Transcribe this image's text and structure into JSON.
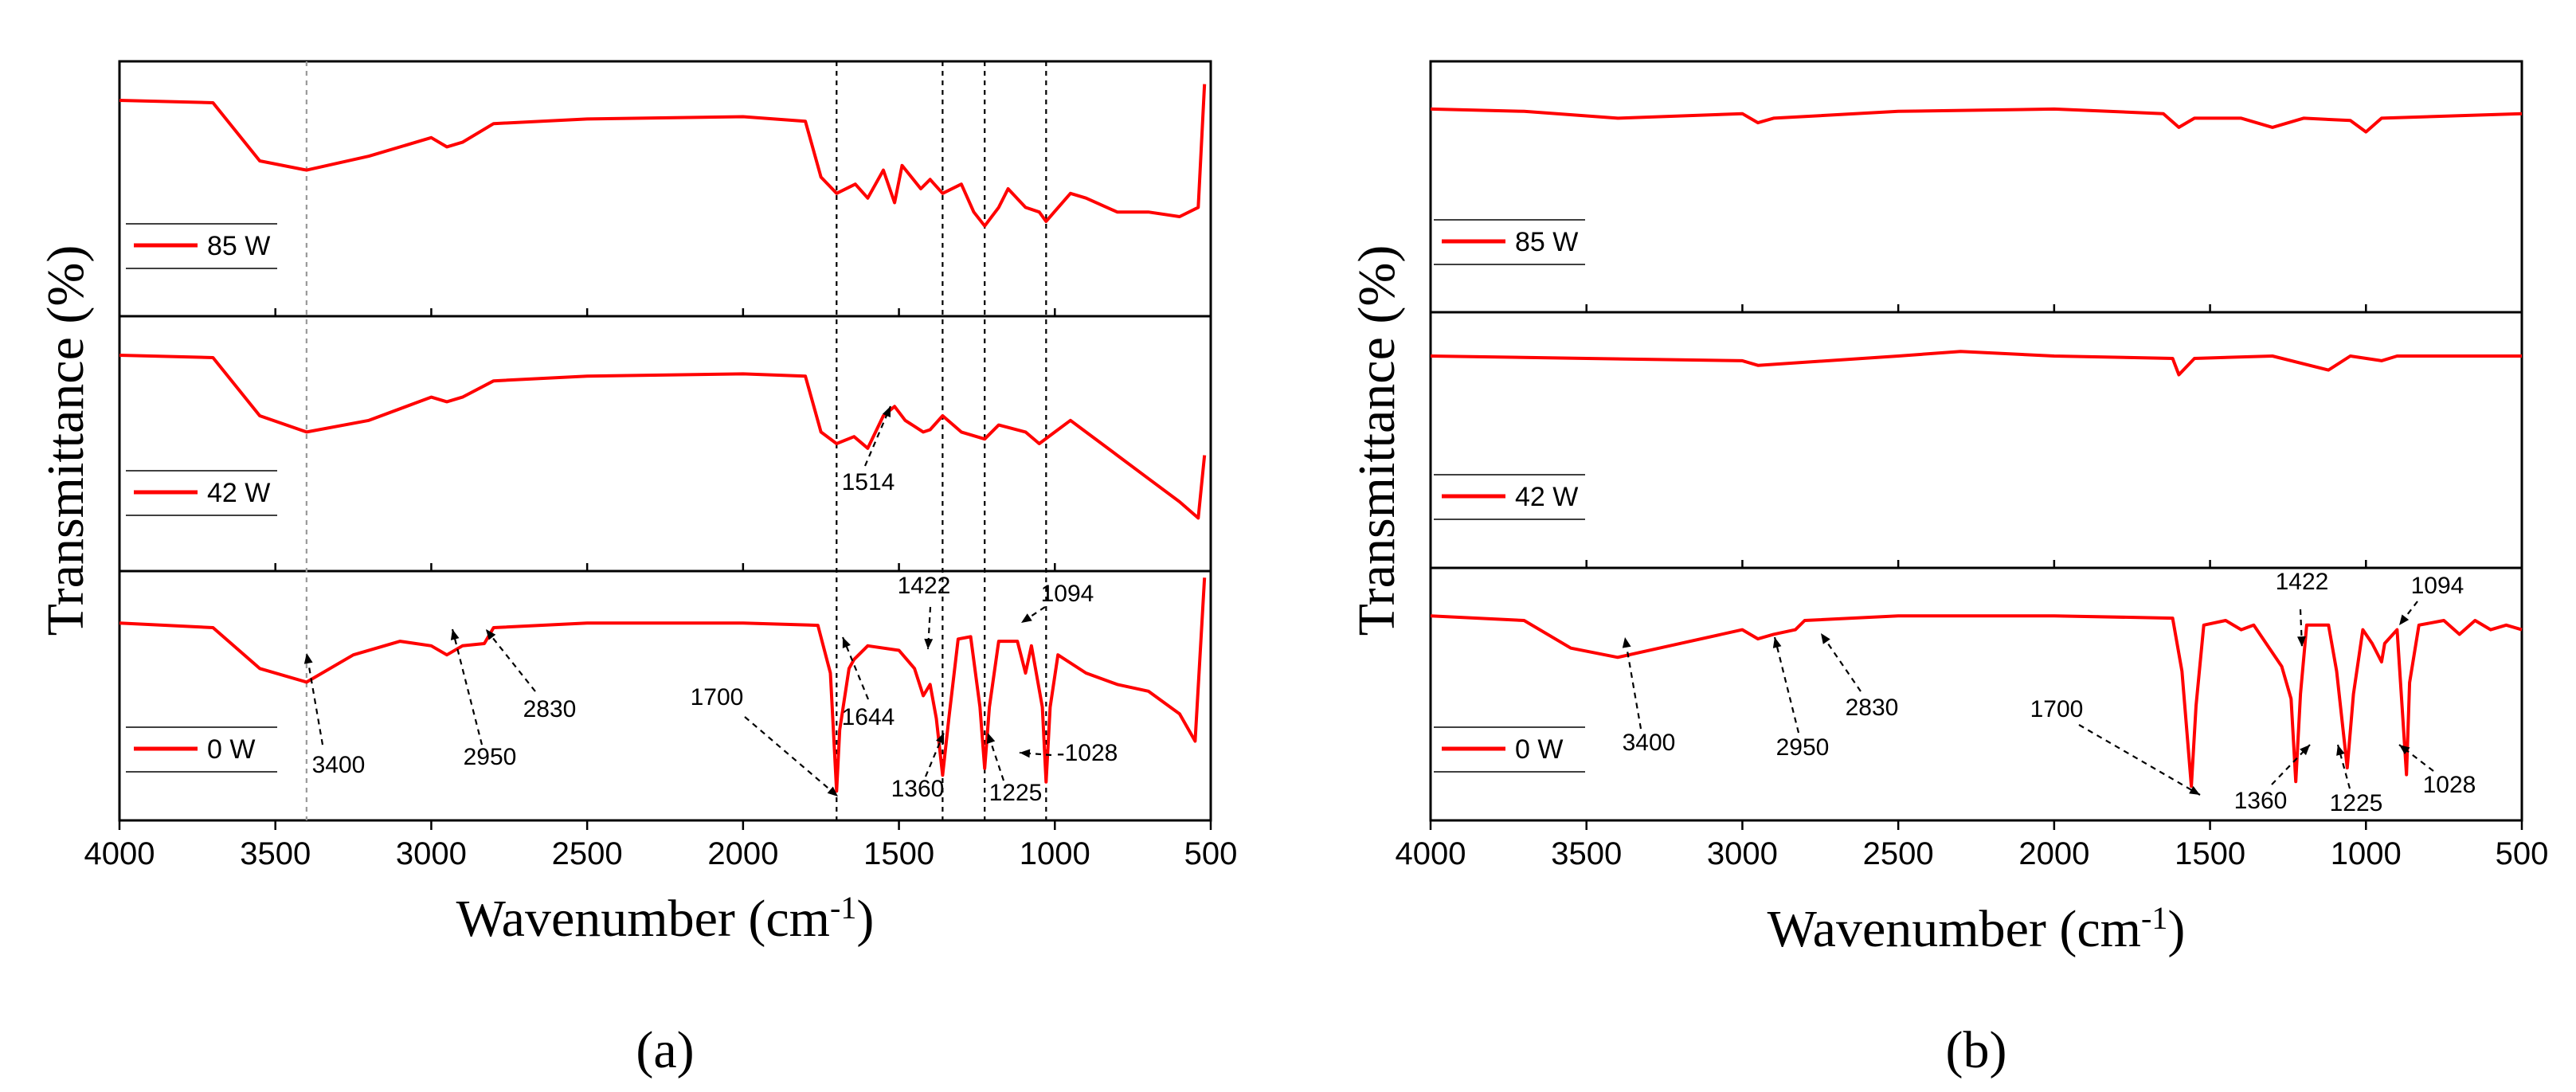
{
  "colors": {
    "series": "#ff0000",
    "axis": "#000000"
  },
  "chart_data": [
    {
      "type": "line",
      "panel_label": "(a)",
      "xlabel": "Wavenumber (cm-1)",
      "ylabel": "Transmittance (%)",
      "xlim": [
        4000,
        500
      ],
      "x_reversed": true,
      "xticks": [
        4000,
        3500,
        3000,
        2500,
        2000,
        1500,
        1000,
        500
      ],
      "stacked_subplots": [
        "85 W",
        "42 W",
        "0 W"
      ],
      "reference_lines_cm": [
        3400,
        1700,
        1360,
        1225,
        1028
      ],
      "series": [
        {
          "name": "85 W",
          "points": [
            [
              4000,
              0.88
            ],
            [
              3700,
              0.87
            ],
            [
              3550,
              0.62
            ],
            [
              3400,
              0.58
            ],
            [
              3200,
              0.64
            ],
            [
              3000,
              0.72
            ],
            [
              2950,
              0.68
            ],
            [
              2900,
              0.7
            ],
            [
              2800,
              0.78
            ],
            [
              2500,
              0.8
            ],
            [
              2000,
              0.81
            ],
            [
              1800,
              0.79
            ],
            [
              1750,
              0.55
            ],
            [
              1700,
              0.48
            ],
            [
              1640,
              0.52
            ],
            [
              1600,
              0.46
            ],
            [
              1550,
              0.58
            ],
            [
              1514,
              0.44
            ],
            [
              1490,
              0.6
            ],
            [
              1430,
              0.5
            ],
            [
              1400,
              0.54
            ],
            [
              1360,
              0.48
            ],
            [
              1300,
              0.52
            ],
            [
              1260,
              0.4
            ],
            [
              1225,
              0.34
            ],
            [
              1180,
              0.42
            ],
            [
              1150,
              0.5
            ],
            [
              1094,
              0.42
            ],
            [
              1050,
              0.4
            ],
            [
              1028,
              0.36
            ],
            [
              950,
              0.48
            ],
            [
              900,
              0.46
            ],
            [
              800,
              0.4
            ],
            [
              700,
              0.4
            ],
            [
              600,
              0.38
            ],
            [
              540,
              0.42
            ],
            [
              520,
              0.95
            ]
          ]
        },
        {
          "name": "42 W",
          "points": [
            [
              4000,
              0.88
            ],
            [
              3700,
              0.87
            ],
            [
              3550,
              0.62
            ],
            [
              3400,
              0.55
            ],
            [
              3200,
              0.6
            ],
            [
              3000,
              0.7
            ],
            [
              2950,
              0.68
            ],
            [
              2900,
              0.7
            ],
            [
              2800,
              0.77
            ],
            [
              2500,
              0.79
            ],
            [
              2000,
              0.8
            ],
            [
              1800,
              0.79
            ],
            [
              1750,
              0.55
            ],
            [
              1700,
              0.5
            ],
            [
              1644,
              0.53
            ],
            [
              1600,
              0.48
            ],
            [
              1550,
              0.62
            ],
            [
              1514,
              0.66
            ],
            [
              1480,
              0.6
            ],
            [
              1422,
              0.55
            ],
            [
              1400,
              0.56
            ],
            [
              1360,
              0.62
            ],
            [
              1300,
              0.55
            ],
            [
              1225,
              0.52
            ],
            [
              1180,
              0.58
            ],
            [
              1094,
              0.55
            ],
            [
              1050,
              0.5
            ],
            [
              1000,
              0.55
            ],
            [
              950,
              0.6
            ],
            [
              900,
              0.55
            ],
            [
              800,
              0.45
            ],
            [
              700,
              0.35
            ],
            [
              600,
              0.25
            ],
            [
              540,
              0.18
            ],
            [
              520,
              0.45
            ]
          ]
        },
        {
          "name": "0 W",
          "points": [
            [
              4000,
              0.82
            ],
            [
              3700,
              0.8
            ],
            [
              3550,
              0.62
            ],
            [
              3400,
              0.56
            ],
            [
              3250,
              0.68
            ],
            [
              3100,
              0.74
            ],
            [
              3000,
              0.72
            ],
            [
              2950,
              0.68
            ],
            [
              2900,
              0.72
            ],
            [
              2830,
              0.73
            ],
            [
              2800,
              0.8
            ],
            [
              2500,
              0.82
            ],
            [
              2000,
              0.82
            ],
            [
              1760,
              0.81
            ],
            [
              1720,
              0.6
            ],
            [
              1700,
              0.08
            ],
            [
              1690,
              0.35
            ],
            [
              1660,
              0.62
            ],
            [
              1644,
              0.66
            ],
            [
              1600,
              0.72
            ],
            [
              1500,
              0.7
            ],
            [
              1450,
              0.62
            ],
            [
              1422,
              0.5
            ],
            [
              1400,
              0.55
            ],
            [
              1380,
              0.4
            ],
            [
              1360,
              0.15
            ],
            [
              1340,
              0.4
            ],
            [
              1310,
              0.75
            ],
            [
              1270,
              0.76
            ],
            [
              1240,
              0.45
            ],
            [
              1225,
              0.18
            ],
            [
              1210,
              0.45
            ],
            [
              1180,
              0.74
            ],
            [
              1120,
              0.74
            ],
            [
              1094,
              0.6
            ],
            [
              1075,
              0.72
            ],
            [
              1040,
              0.45
            ],
            [
              1028,
              0.12
            ],
            [
              1015,
              0.45
            ],
            [
              990,
              0.68
            ],
            [
              900,
              0.6
            ],
            [
              800,
              0.55
            ],
            [
              700,
              0.52
            ],
            [
              600,
              0.42
            ],
            [
              550,
              0.3
            ],
            [
              520,
              1.02
            ]
          ]
        }
      ],
      "annotations": [
        "3400",
        "2950",
        "2830",
        "1700",
        "1644",
        "1514",
        "1422",
        "1360",
        "1225",
        "1094",
        "-1028"
      ]
    },
    {
      "type": "line",
      "panel_label": "(b)",
      "xlabel": "Wavenumber (cm-1)",
      "ylabel": "Transmittance (%)",
      "xlim": [
        4000,
        500
      ],
      "x_reversed": true,
      "xticks": [
        4000,
        3500,
        3000,
        2500,
        2000,
        1500,
        1000,
        500
      ],
      "stacked_subplots": [
        "85 W",
        "42 W",
        "0 W"
      ],
      "series": [
        {
          "name": "85 W",
          "points": [
            [
              4000,
              0.84
            ],
            [
              3700,
              0.83
            ],
            [
              3400,
              0.8
            ],
            [
              3000,
              0.82
            ],
            [
              2950,
              0.78
            ],
            [
              2900,
              0.8
            ],
            [
              2500,
              0.83
            ],
            [
              2000,
              0.84
            ],
            [
              1650,
              0.82
            ],
            [
              1600,
              0.76
            ],
            [
              1550,
              0.8
            ],
            [
              1400,
              0.8
            ],
            [
              1300,
              0.76
            ],
            [
              1200,
              0.8
            ],
            [
              1050,
              0.79
            ],
            [
              1000,
              0.74
            ],
            [
              950,
              0.8
            ],
            [
              500,
              0.82
            ]
          ]
        },
        {
          "name": "42 W",
          "points": [
            [
              4000,
              0.86
            ],
            [
              3500,
              0.85
            ],
            [
              3000,
              0.84
            ],
            [
              2950,
              0.82
            ],
            [
              2500,
              0.86
            ],
            [
              2300,
              0.88
            ],
            [
              2000,
              0.86
            ],
            [
              1620,
              0.85
            ],
            [
              1600,
              0.78
            ],
            [
              1550,
              0.85
            ],
            [
              1300,
              0.86
            ],
            [
              1120,
              0.8
            ],
            [
              1050,
              0.86
            ],
            [
              950,
              0.84
            ],
            [
              900,
              0.86
            ],
            [
              500,
              0.86
            ]
          ]
        },
        {
          "name": "0 W",
          "points": [
            [
              4000,
              0.84
            ],
            [
              3700,
              0.82
            ],
            [
              3550,
              0.7
            ],
            [
              3400,
              0.66
            ],
            [
              3200,
              0.72
            ],
            [
              3000,
              0.78
            ],
            [
              2950,
              0.74
            ],
            [
              2900,
              0.76
            ],
            [
              2830,
              0.78
            ],
            [
              2800,
              0.82
            ],
            [
              2500,
              0.84
            ],
            [
              2000,
              0.84
            ],
            [
              1620,
              0.83
            ],
            [
              1590,
              0.6
            ],
            [
              1560,
              0.1
            ],
            [
              1545,
              0.45
            ],
            [
              1520,
              0.8
            ],
            [
              1450,
              0.82
            ],
            [
              1400,
              0.78
            ],
            [
              1360,
              0.8
            ],
            [
              1300,
              0.68
            ],
            [
              1270,
              0.62
            ],
            [
              1240,
              0.48
            ],
            [
              1225,
              0.12
            ],
            [
              1210,
              0.5
            ],
            [
              1190,
              0.8
            ],
            [
              1120,
              0.8
            ],
            [
              1094,
              0.6
            ],
            [
              1060,
              0.18
            ],
            [
              1040,
              0.5
            ],
            [
              1010,
              0.78
            ],
            [
              980,
              0.72
            ],
            [
              950,
              0.64
            ],
            [
              940,
              0.72
            ],
            [
              900,
              0.78
            ],
            [
              870,
              0.15
            ],
            [
              860,
              0.55
            ],
            [
              830,
              0.8
            ],
            [
              750,
              0.82
            ],
            [
              700,
              0.76
            ],
            [
              650,
              0.82
            ],
            [
              600,
              0.78
            ],
            [
              550,
              0.8
            ],
            [
              500,
              0.78
            ]
          ]
        }
      ],
      "annotations": [
        "3400",
        "2950",
        "2830",
        "1700",
        "1422",
        "1360",
        "1225",
        "1094",
        "1028"
      ]
    }
  ]
}
